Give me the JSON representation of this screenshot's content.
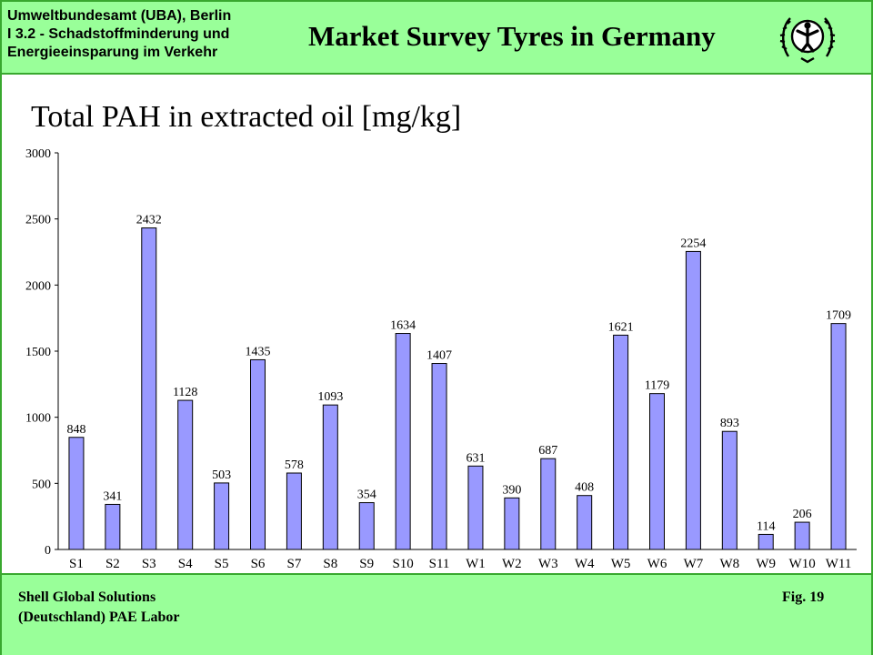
{
  "header": {
    "org_lines": [
      "Umweltbundesamt (UBA),  Berlin",
      "I 3.2  - Schadstoffminderung und",
      "Energieeinsparung im Verkehr"
    ],
    "title": "Market Survey Tyres in Germany",
    "logo_icon": "un-emblem-icon"
  },
  "footer": {
    "line1": "Shell Global Solutions",
    "line2": "(Deutschland) PAE Labor",
    "figure": "Fig.  19"
  },
  "colors": {
    "band": "#99ff99",
    "border": "#39a82f",
    "bar_fill": "#9999ff",
    "bar_stroke": "#000000"
  },
  "chart_data": {
    "type": "bar",
    "title": "Total PAH in extracted oil [mg/kg]",
    "xlabel": "",
    "ylabel": "",
    "ylim": [
      0,
      3000
    ],
    "yticks": [
      0,
      500,
      1000,
      1500,
      2000,
      2500,
      3000
    ],
    "grid": false,
    "categories": [
      "S1",
      "S2",
      "S3",
      "S4",
      "S5",
      "S6",
      "S7",
      "S8",
      "S9",
      "S10",
      "S11",
      "W1",
      "W2",
      "W3",
      "W4",
      "W5",
      "W6",
      "W7",
      "W8",
      "W9",
      "W10",
      "W11"
    ],
    "values": [
      848,
      341,
      2432,
      1128,
      503,
      1435,
      578,
      1093,
      354,
      1634,
      1407,
      631,
      390,
      687,
      408,
      1621,
      1179,
      2254,
      893,
      114,
      206,
      1709
    ],
    "data_labels": [
      "848",
      "341",
      "2432",
      "1128",
      "503",
      "1435",
      "578",
      "1093",
      "354",
      "1634",
      "1407",
      "631",
      "390",
      "687",
      "408",
      "1621",
      "1179",
      "2254",
      "893",
      "114",
      "206",
      "1709"
    ]
  }
}
